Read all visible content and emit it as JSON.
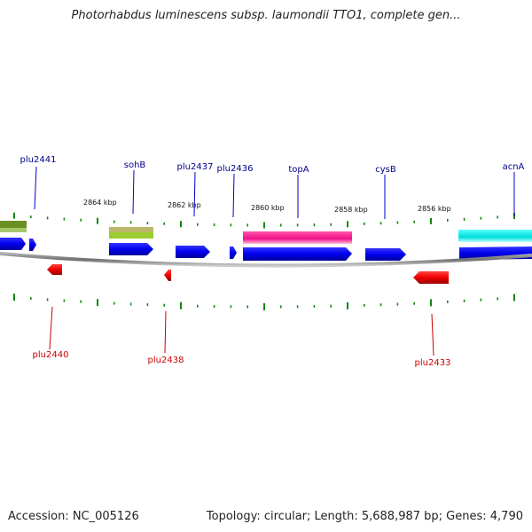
{
  "title": "Photorhabdus luminescens subsp. laumondii TTO1, complete gen...",
  "footer": {
    "accession": "Accession: NC_005126",
    "summary": "Topology: circular; Length: 5,688,987 bp; Genes: 4,790"
  },
  "colors": {
    "forward_gene": "#0000ee",
    "reverse_gene": "#ee0000",
    "tick": "#118811",
    "backbone": "#808080",
    "forward_label": "#00008b",
    "reverse_label": "#cc0000"
  },
  "axis": {
    "tick_labels": [
      "2864 kbp",
      "2862 kbp",
      "2860 kbp",
      "2858 kbp",
      "2856 kbp"
    ]
  },
  "genes": {
    "forward_labels": [
      "plu2441",
      "sohB",
      "plu2437",
      "plu2436",
      "topA",
      "cysB",
      "acnA"
    ],
    "reverse_labels": [
      "plu2440",
      "plu2438",
      "plu2433"
    ]
  },
  "features": {
    "olive": "#6b8e23",
    "khaki": "#bdb76b",
    "lightgreen": "#9acd32",
    "magenta": "#ee1188",
    "cyan": "#00dddd"
  }
}
